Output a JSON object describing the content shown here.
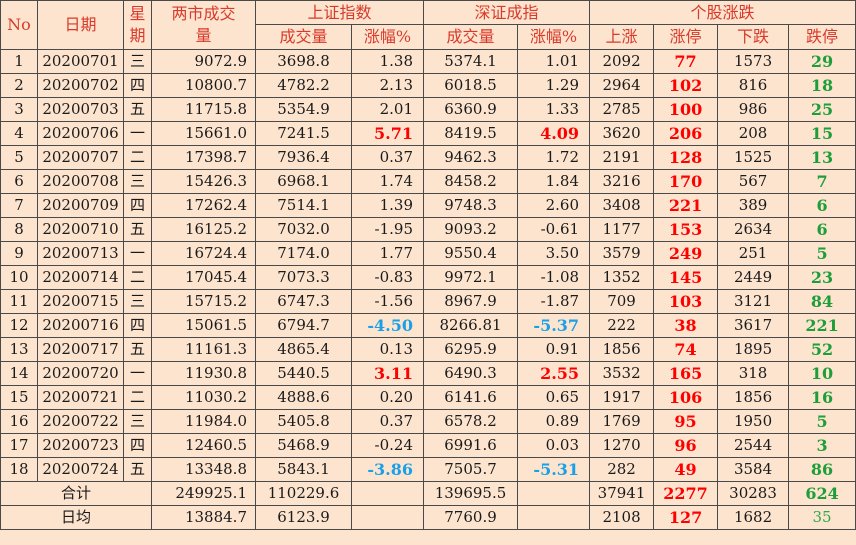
{
  "header": {
    "no": "No",
    "date": "日期",
    "weekday": "星期",
    "total_volume": "两市成交量",
    "sh_group": "上证指数",
    "sz_group": "深证成指",
    "stocks_group": "个股涨跌",
    "sh_volume": "成交量",
    "sh_change": "涨幅%",
    "sz_volume": "成交量",
    "sz_change": "涨幅%",
    "up": "上涨",
    "limit_up": "涨停",
    "down": "下跌",
    "limit_down": "跌停"
  },
  "rows": [
    {
      "no": "1",
      "date": "20200701",
      "wd": "三",
      "total": "9072.9",
      "sh_vol": "3698.8",
      "sh_chg": "1.38",
      "sz_vol": "5374.1",
      "sz_chg": "1.01",
      "up": "2092",
      "lu": "77",
      "down": "1573",
      "ld": "29"
    },
    {
      "no": "2",
      "date": "20200702",
      "wd": "四",
      "total": "10800.7",
      "sh_vol": "4782.2",
      "sh_chg": "2.13",
      "sz_vol": "6018.5",
      "sz_chg": "1.29",
      "up": "2964",
      "lu": "102",
      "down": "816",
      "ld": "18"
    },
    {
      "no": "3",
      "date": "20200703",
      "wd": "五",
      "total": "11715.8",
      "sh_vol": "5354.9",
      "sh_chg": "2.01",
      "sz_vol": "6360.9",
      "sz_chg": "1.33",
      "up": "2785",
      "lu": "100",
      "down": "986",
      "ld": "25"
    },
    {
      "no": "4",
      "date": "20200706",
      "wd": "一",
      "total": "15661.0",
      "sh_vol": "7241.5",
      "sh_chg": "5.71",
      "sz_vol": "8419.5",
      "sz_chg": "4.09",
      "up": "3620",
      "lu": "206",
      "down": "208",
      "ld": "15"
    },
    {
      "no": "5",
      "date": "20200707",
      "wd": "二",
      "total": "17398.7",
      "sh_vol": "7936.4",
      "sh_chg": "0.37",
      "sz_vol": "9462.3",
      "sz_chg": "1.72",
      "up": "2191",
      "lu": "128",
      "down": "1525",
      "ld": "13"
    },
    {
      "no": "6",
      "date": "20200708",
      "wd": "三",
      "total": "15426.3",
      "sh_vol": "6968.1",
      "sh_chg": "1.74",
      "sz_vol": "8458.2",
      "sz_chg": "1.84",
      "up": "3216",
      "lu": "170",
      "down": "567",
      "ld": "7"
    },
    {
      "no": "7",
      "date": "20200709",
      "wd": "四",
      "total": "17262.4",
      "sh_vol": "7514.1",
      "sh_chg": "1.39",
      "sz_vol": "9748.3",
      "sz_chg": "2.60",
      "up": "3408",
      "lu": "221",
      "down": "389",
      "ld": "6"
    },
    {
      "no": "8",
      "date": "20200710",
      "wd": "五",
      "total": "16125.2",
      "sh_vol": "7032.0",
      "sh_chg": "-1.95",
      "sz_vol": "9093.2",
      "sz_chg": "-0.61",
      "up": "1177",
      "lu": "153",
      "down": "2634",
      "ld": "6"
    },
    {
      "no": "9",
      "date": "20200713",
      "wd": "一",
      "total": "16724.4",
      "sh_vol": "7174.0",
      "sh_chg": "1.77",
      "sz_vol": "9550.4",
      "sz_chg": "3.50",
      "up": "3579",
      "lu": "249",
      "down": "251",
      "ld": "5"
    },
    {
      "no": "10",
      "date": "20200714",
      "wd": "二",
      "total": "17045.4",
      "sh_vol": "7073.3",
      "sh_chg": "-0.83",
      "sz_vol": "9972.1",
      "sz_chg": "-1.08",
      "up": "1352",
      "lu": "145",
      "down": "2449",
      "ld": "23"
    },
    {
      "no": "11",
      "date": "20200715",
      "wd": "三",
      "total": "15715.2",
      "sh_vol": "6747.3",
      "sh_chg": "-1.56",
      "sz_vol": "8967.9",
      "sz_chg": "-1.87",
      "up": "709",
      "lu": "103",
      "down": "3121",
      "ld": "84"
    },
    {
      "no": "12",
      "date": "20200716",
      "wd": "四",
      "total": "15061.5",
      "sh_vol": "6794.7",
      "sh_chg": "-4.50",
      "sz_vol": "8266.81",
      "sz_chg": "-5.37",
      "up": "222",
      "lu": "38",
      "down": "3617",
      "ld": "221"
    },
    {
      "no": "13",
      "date": "20200717",
      "wd": "五",
      "total": "11161.3",
      "sh_vol": "4865.4",
      "sh_chg": "0.13",
      "sz_vol": "6295.9",
      "sz_chg": "0.91",
      "up": "1856",
      "lu": "74",
      "down": "1895",
      "ld": "52"
    },
    {
      "no": "14",
      "date": "20200720",
      "wd": "一",
      "total": "11930.8",
      "sh_vol": "5440.5",
      "sh_chg": "3.11",
      "sz_vol": "6490.3",
      "sz_chg": "2.55",
      "up": "3532",
      "lu": "165",
      "down": "318",
      "ld": "10"
    },
    {
      "no": "15",
      "date": "20200721",
      "wd": "二",
      "total": "11030.2",
      "sh_vol": "4888.6",
      "sh_chg": "0.20",
      "sz_vol": "6141.6",
      "sz_chg": "0.65",
      "up": "1917",
      "lu": "106",
      "down": "1856",
      "ld": "16"
    },
    {
      "no": "16",
      "date": "20200722",
      "wd": "三",
      "total": "11984.0",
      "sh_vol": "5405.8",
      "sh_chg": "0.37",
      "sz_vol": "6578.2",
      "sz_chg": "0.89",
      "up": "1769",
      "lu": "95",
      "down": "1950",
      "ld": "5"
    },
    {
      "no": "17",
      "date": "20200723",
      "wd": "四",
      "total": "12460.5",
      "sh_vol": "5468.9",
      "sh_chg": "-0.24",
      "sz_vol": "6991.6",
      "sz_chg": "0.03",
      "up": "1270",
      "lu": "96",
      "down": "2544",
      "ld": "3"
    },
    {
      "no": "18",
      "date": "20200724",
      "wd": "五",
      "total": "13348.8",
      "sh_vol": "5843.1",
      "sh_chg": "-3.86",
      "sz_vol": "7505.7",
      "sz_chg": "-5.31",
      "up": "282",
      "lu": "49",
      "down": "3584",
      "ld": "86"
    }
  ],
  "highlight": {
    "sh_red": [
      "4",
      "14"
    ],
    "sh_blue": [
      "12",
      "18"
    ],
    "sz_red": [
      "4",
      "14"
    ],
    "sz_blue": [
      "12",
      "18"
    ]
  },
  "total": {
    "label": "合计",
    "total": "249925.1",
    "sh_vol": "110229.6",
    "sz_vol": "139695.5",
    "up": "37941",
    "lu": "2277",
    "down": "30283",
    "ld": "624"
  },
  "average": {
    "label": "日均",
    "total": "13884.7",
    "sh_vol": "6123.9",
    "sz_vol": "7760.9",
    "up": "2108",
    "lu": "127",
    "down": "1682",
    "ld": "35"
  },
  "colors": {
    "background": "#fce4cf",
    "header_text": "#d93a2b",
    "positive_big": "#ff0000",
    "negative_big": "#1aa0e8",
    "limit_down": "#1e9e3a"
  }
}
